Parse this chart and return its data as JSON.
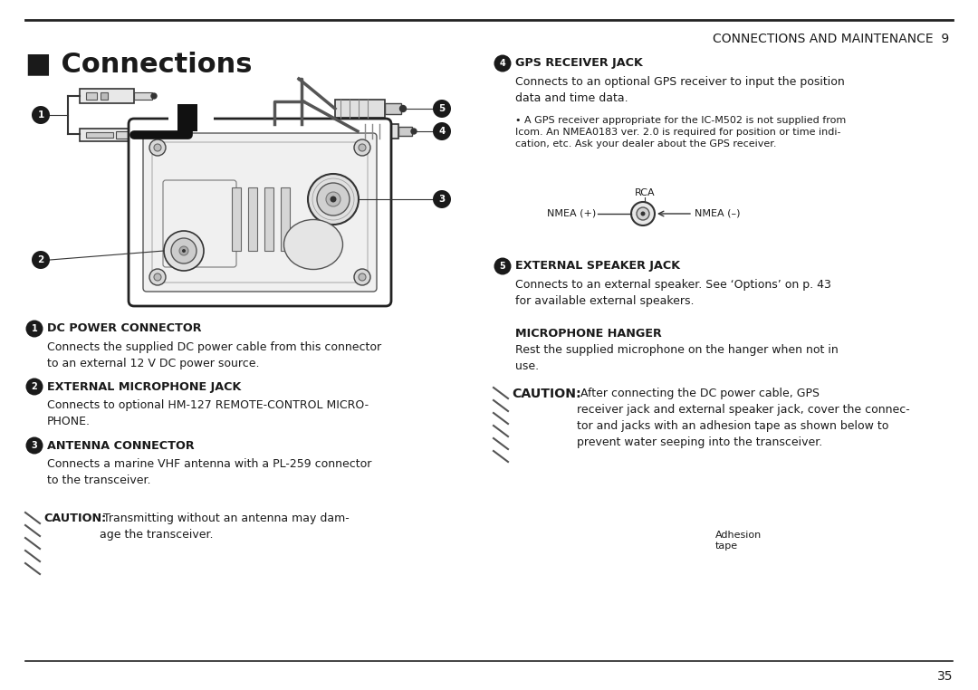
{
  "bg": "#ffffff",
  "tc": "#1a1a1a",
  "chapter_header": "CONNECTIONS AND MAINTENANCE  9",
  "section_title": "■ Connections",
  "item1_title": " DC POWER CONNECTOR",
  "item1_body": "    Connects the supplied DC power cable from this connector\n    to an external 12 V DC power source.",
  "item2_title": " EXTERNAL MICROPHONE JACK",
  "item2_body": "    Connects to optional HM-127 REMOTE-CONTROL MICRO-\n    PHONE.",
  "item3_title": " ANTENNA CONNECTOR",
  "item3_body": "    Connects a marine VHF antenna with a PL-259 connector\n    to the transceiver.",
  "caution1_bold": "CAUTION:",
  "caution1_text": " Transmitting without an antenna may dam-\nage the transceiver.",
  "item4_title": " GPS RECEIVER JACK",
  "item4_body": "    Connects to an optional GPS receiver to input the position\n    data and time data.",
  "item4_note": "    • A GPS receiver appropriate for the IC-M502 is not supplied from\n    Icom. An NMEA0183 ver. 2.0 is required for position or time indi-\n    cation, etc. Ask your dealer about the GPS receiver.",
  "rca_label": "RCA",
  "nmea_plus": "NMEA (+)",
  "nmea_minus": "NMEA (–)",
  "item5_title": " EXTERNAL SPEAKER JACK",
  "item5_body": "    Connects to an external speaker. See ‘Options’ on p. 43\n    for available external speakers.",
  "mic_hanger_title": "MICROPHONE HANGER",
  "mic_hanger_body": "    Rest the supplied microphone on the hanger when not in\n    use.",
  "caution2_bold": "CAUTION:",
  "caution2_text": " After connecting the DC power cable, GPS\nreceiver jack and external speaker jack, cover the connec-\ntor and jacks with an adhesion tape as shown below to\nprevent water seeping into the transceiver.",
  "adhesion_label": "Adhesion\ntape",
  "page_number": "35"
}
